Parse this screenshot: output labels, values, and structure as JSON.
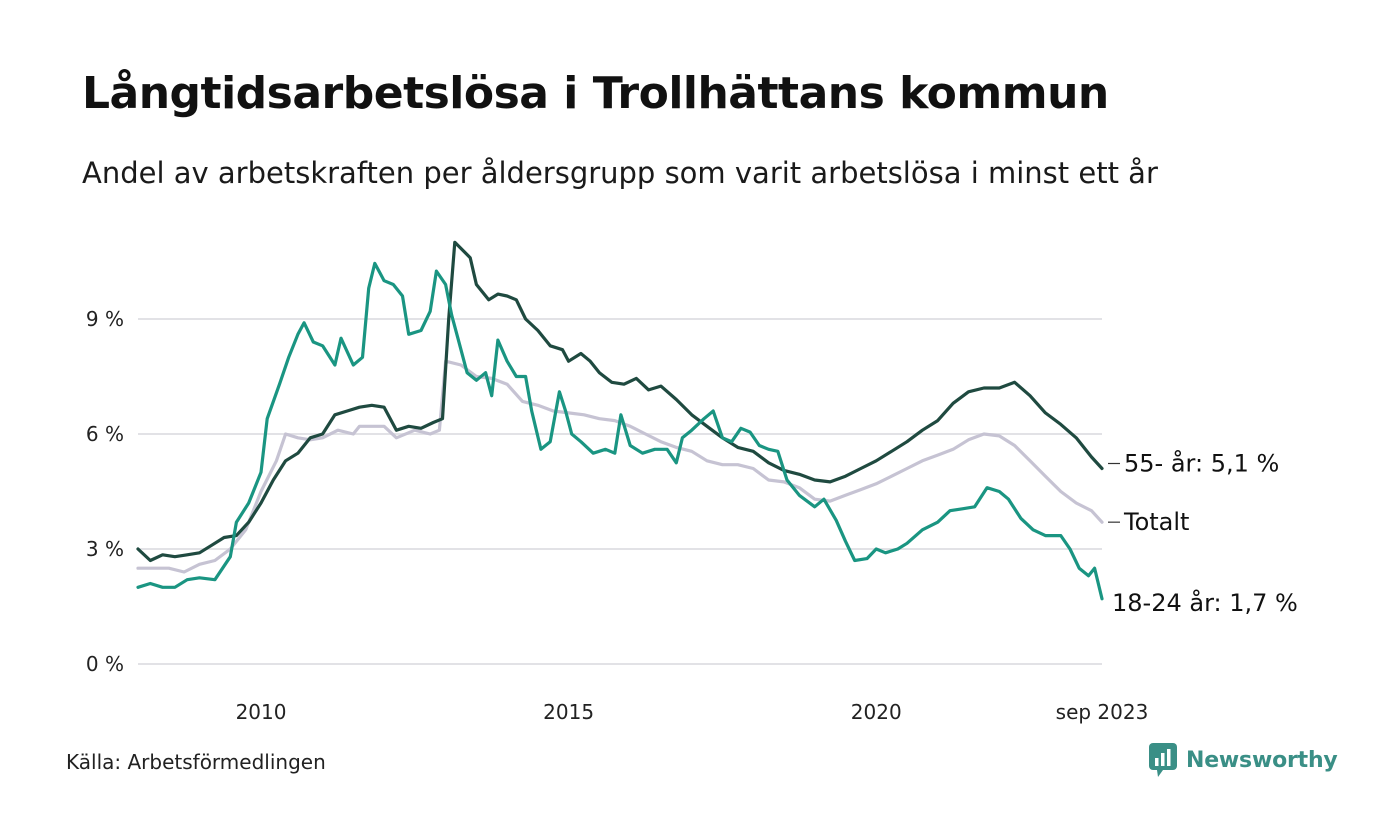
{
  "title": "Långtidsarbetslösa i Trollhättans kommun",
  "subtitle": "Andel av arbetskraften per åldersgrupp som varit arbetslösa i minst ett år",
  "source": "Källa: Arbetsförmedlingen",
  "brand": {
    "name": "Newsworthy",
    "icon": "newsworthy-logo-icon",
    "color": "#3a8f86"
  },
  "chart_data": {
    "type": "line",
    "title": "Långtidsarbetslösa i Trollhättans kommun",
    "xlabel": "",
    "ylabel": "",
    "x_range": [
      2008.0,
      2023.67
    ],
    "ylim": [
      0,
      11.2
    ],
    "y_ticks": [
      {
        "value": 0,
        "label": "0 %"
      },
      {
        "value": 3,
        "label": "3 %"
      },
      {
        "value": 6,
        "label": "6 %"
      },
      {
        "value": 9,
        "label": "9 %"
      }
    ],
    "x_ticks": [
      {
        "value": 2010,
        "label": "2010"
      },
      {
        "value": 2015,
        "label": "2015"
      },
      {
        "value": 2020,
        "label": "2020"
      },
      {
        "value": 2023.67,
        "label": "sep 2023"
      }
    ],
    "grid": true,
    "series": [
      {
        "name": "Totalt",
        "end_label": "Totalt",
        "color": "#c6c3d3",
        "points": [
          [
            2008.0,
            2.5
          ],
          [
            2008.25,
            2.5
          ],
          [
            2008.5,
            2.5
          ],
          [
            2008.75,
            2.4
          ],
          [
            2009.0,
            2.6
          ],
          [
            2009.25,
            2.7
          ],
          [
            2009.5,
            3.0
          ],
          [
            2009.75,
            3.5
          ],
          [
            2010.0,
            4.5
          ],
          [
            2010.25,
            5.3
          ],
          [
            2010.4,
            6.0
          ],
          [
            2010.6,
            5.9
          ],
          [
            2010.8,
            5.85
          ],
          [
            2011.0,
            5.9
          ],
          [
            2011.25,
            6.1
          ],
          [
            2011.5,
            6.0
          ],
          [
            2011.6,
            6.2
          ],
          [
            2011.8,
            6.2
          ],
          [
            2012.0,
            6.2
          ],
          [
            2012.2,
            5.9
          ],
          [
            2012.5,
            6.1
          ],
          [
            2012.75,
            6.0
          ],
          [
            2012.9,
            6.1
          ],
          [
            2013.0,
            7.9
          ],
          [
            2013.25,
            7.8
          ],
          [
            2013.5,
            7.5
          ],
          [
            2013.75,
            7.45
          ],
          [
            2014.0,
            7.3
          ],
          [
            2014.25,
            6.85
          ],
          [
            2014.5,
            6.75
          ],
          [
            2014.75,
            6.6
          ],
          [
            2015.0,
            6.55
          ],
          [
            2015.25,
            6.5
          ],
          [
            2015.5,
            6.4
          ],
          [
            2015.75,
            6.35
          ],
          [
            2016.0,
            6.2
          ],
          [
            2016.25,
            6.0
          ],
          [
            2016.5,
            5.8
          ],
          [
            2016.75,
            5.65
          ],
          [
            2017.0,
            5.55
          ],
          [
            2017.25,
            5.3
          ],
          [
            2017.5,
            5.2
          ],
          [
            2017.75,
            5.2
          ],
          [
            2018.0,
            5.1
          ],
          [
            2018.25,
            4.8
          ],
          [
            2018.5,
            4.75
          ],
          [
            2018.75,
            4.6
          ],
          [
            2019.0,
            4.3
          ],
          [
            2019.25,
            4.25
          ],
          [
            2019.5,
            4.4
          ],
          [
            2019.75,
            4.55
          ],
          [
            2020.0,
            4.7
          ],
          [
            2020.25,
            4.9
          ],
          [
            2020.5,
            5.1
          ],
          [
            2020.75,
            5.3
          ],
          [
            2021.0,
            5.45
          ],
          [
            2021.25,
            5.6
          ],
          [
            2021.5,
            5.85
          ],
          [
            2021.75,
            6.0
          ],
          [
            2022.0,
            5.95
          ],
          [
            2022.25,
            5.7
          ],
          [
            2022.5,
            5.3
          ],
          [
            2022.75,
            4.9
          ],
          [
            2023.0,
            4.5
          ],
          [
            2023.25,
            4.2
          ],
          [
            2023.5,
            4.0
          ],
          [
            2023.67,
            3.7
          ]
        ]
      },
      {
        "name": "55- år",
        "end_label": "55- år: 5,1 %",
        "color": "#1f4a40",
        "points": [
          [
            2008.0,
            3.0
          ],
          [
            2008.2,
            2.7
          ],
          [
            2008.4,
            2.85
          ],
          [
            2008.6,
            2.8
          ],
          [
            2008.8,
            2.85
          ],
          [
            2009.0,
            2.9
          ],
          [
            2009.2,
            3.1
          ],
          [
            2009.4,
            3.3
          ],
          [
            2009.6,
            3.35
          ],
          [
            2009.8,
            3.7
          ],
          [
            2010.0,
            4.2
          ],
          [
            2010.2,
            4.8
          ],
          [
            2010.4,
            5.3
          ],
          [
            2010.6,
            5.5
          ],
          [
            2010.8,
            5.9
          ],
          [
            2011.0,
            6.0
          ],
          [
            2011.2,
            6.5
          ],
          [
            2011.4,
            6.6
          ],
          [
            2011.6,
            6.7
          ],
          [
            2011.8,
            6.75
          ],
          [
            2012.0,
            6.7
          ],
          [
            2012.2,
            6.1
          ],
          [
            2012.4,
            6.2
          ],
          [
            2012.6,
            6.15
          ],
          [
            2012.8,
            6.3
          ],
          [
            2012.95,
            6.4
          ],
          [
            2013.05,
            9.0
          ],
          [
            2013.15,
            11.0
          ],
          [
            2013.4,
            10.6
          ],
          [
            2013.5,
            9.9
          ],
          [
            2013.7,
            9.5
          ],
          [
            2013.85,
            9.65
          ],
          [
            2014.0,
            9.6
          ],
          [
            2014.15,
            9.5
          ],
          [
            2014.3,
            9.0
          ],
          [
            2014.5,
            8.7
          ],
          [
            2014.7,
            8.3
          ],
          [
            2014.9,
            8.2
          ],
          [
            2015.0,
            7.9
          ],
          [
            2015.2,
            8.1
          ],
          [
            2015.35,
            7.9
          ],
          [
            2015.5,
            7.6
          ],
          [
            2015.7,
            7.35
          ],
          [
            2015.9,
            7.3
          ],
          [
            2016.1,
            7.45
          ],
          [
            2016.3,
            7.15
          ],
          [
            2016.5,
            7.25
          ],
          [
            2016.75,
            6.9
          ],
          [
            2017.0,
            6.5
          ],
          [
            2017.25,
            6.2
          ],
          [
            2017.5,
            5.9
          ],
          [
            2017.75,
            5.65
          ],
          [
            2018.0,
            5.55
          ],
          [
            2018.25,
            5.25
          ],
          [
            2018.5,
            5.05
          ],
          [
            2018.75,
            4.95
          ],
          [
            2019.0,
            4.8
          ],
          [
            2019.25,
            4.75
          ],
          [
            2019.5,
            4.9
          ],
          [
            2019.75,
            5.1
          ],
          [
            2020.0,
            5.3
          ],
          [
            2020.25,
            5.55
          ],
          [
            2020.5,
            5.8
          ],
          [
            2020.75,
            6.1
          ],
          [
            2021.0,
            6.35
          ],
          [
            2021.25,
            6.8
          ],
          [
            2021.5,
            7.1
          ],
          [
            2021.75,
            7.2
          ],
          [
            2022.0,
            7.2
          ],
          [
            2022.25,
            7.35
          ],
          [
            2022.5,
            7.0
          ],
          [
            2022.75,
            6.55
          ],
          [
            2023.0,
            6.25
          ],
          [
            2023.25,
            5.9
          ],
          [
            2023.5,
            5.4
          ],
          [
            2023.67,
            5.1
          ]
        ]
      },
      {
        "name": "18-24 år",
        "end_label": "18-24 år: 1,7 %",
        "color": "#1a9582",
        "points": [
          [
            2008.0,
            2.0
          ],
          [
            2008.2,
            2.1
          ],
          [
            2008.4,
            2.0
          ],
          [
            2008.6,
            2.0
          ],
          [
            2008.8,
            2.2
          ],
          [
            2009.0,
            2.25
          ],
          [
            2009.25,
            2.2
          ],
          [
            2009.5,
            2.8
          ],
          [
            2009.6,
            3.7
          ],
          [
            2009.8,
            4.2
          ],
          [
            2010.0,
            5.0
          ],
          [
            2010.1,
            6.4
          ],
          [
            2010.3,
            7.3
          ],
          [
            2010.45,
            8.0
          ],
          [
            2010.6,
            8.6
          ],
          [
            2010.7,
            8.9
          ],
          [
            2010.85,
            8.4
          ],
          [
            2011.0,
            8.3
          ],
          [
            2011.2,
            7.8
          ],
          [
            2011.3,
            8.5
          ],
          [
            2011.5,
            7.8
          ],
          [
            2011.65,
            8.0
          ],
          [
            2011.75,
            9.8
          ],
          [
            2011.85,
            10.45
          ],
          [
            2012.0,
            10.0
          ],
          [
            2012.15,
            9.9
          ],
          [
            2012.3,
            9.6
          ],
          [
            2012.4,
            8.6
          ],
          [
            2012.6,
            8.7
          ],
          [
            2012.75,
            9.2
          ],
          [
            2012.85,
            10.25
          ],
          [
            2013.0,
            9.9
          ],
          [
            2013.1,
            9.1
          ],
          [
            2013.2,
            8.5
          ],
          [
            2013.35,
            7.6
          ],
          [
            2013.5,
            7.4
          ],
          [
            2013.65,
            7.6
          ],
          [
            2013.75,
            7.0
          ],
          [
            2013.85,
            8.45
          ],
          [
            2014.0,
            7.9
          ],
          [
            2014.15,
            7.5
          ],
          [
            2014.3,
            7.5
          ],
          [
            2014.4,
            6.6
          ],
          [
            2014.55,
            5.6
          ],
          [
            2014.7,
            5.8
          ],
          [
            2014.85,
            7.1
          ],
          [
            2014.95,
            6.6
          ],
          [
            2015.05,
            6.0
          ],
          [
            2015.2,
            5.8
          ],
          [
            2015.4,
            5.5
          ],
          [
            2015.6,
            5.6
          ],
          [
            2015.75,
            5.5
          ],
          [
            2015.85,
            6.5
          ],
          [
            2016.0,
            5.7
          ],
          [
            2016.2,
            5.5
          ],
          [
            2016.4,
            5.6
          ],
          [
            2016.6,
            5.6
          ],
          [
            2016.75,
            5.25
          ],
          [
            2016.85,
            5.9
          ],
          [
            2017.0,
            6.1
          ],
          [
            2017.2,
            6.4
          ],
          [
            2017.35,
            6.6
          ],
          [
            2017.5,
            5.9
          ],
          [
            2017.65,
            5.8
          ],
          [
            2017.8,
            6.15
          ],
          [
            2017.95,
            6.05
          ],
          [
            2018.1,
            5.7
          ],
          [
            2018.25,
            5.6
          ],
          [
            2018.4,
            5.55
          ],
          [
            2018.55,
            4.8
          ],
          [
            2018.75,
            4.4
          ],
          [
            2019.0,
            4.1
          ],
          [
            2019.15,
            4.3
          ],
          [
            2019.35,
            3.75
          ],
          [
            2019.5,
            3.2
          ],
          [
            2019.65,
            2.7
          ],
          [
            2019.85,
            2.75
          ],
          [
            2020.0,
            3.0
          ],
          [
            2020.15,
            2.9
          ],
          [
            2020.35,
            3.0
          ],
          [
            2020.5,
            3.15
          ],
          [
            2020.75,
            3.5
          ],
          [
            2021.0,
            3.7
          ],
          [
            2021.2,
            4.0
          ],
          [
            2021.4,
            4.05
          ],
          [
            2021.6,
            4.1
          ],
          [
            2021.8,
            4.6
          ],
          [
            2022.0,
            4.5
          ],
          [
            2022.15,
            4.3
          ],
          [
            2022.35,
            3.8
          ],
          [
            2022.55,
            3.5
          ],
          [
            2022.75,
            3.35
          ],
          [
            2023.0,
            3.35
          ],
          [
            2023.15,
            3.0
          ],
          [
            2023.3,
            2.5
          ],
          [
            2023.45,
            2.3
          ],
          [
            2023.55,
            2.5
          ],
          [
            2023.67,
            1.7
          ]
        ]
      }
    ]
  }
}
